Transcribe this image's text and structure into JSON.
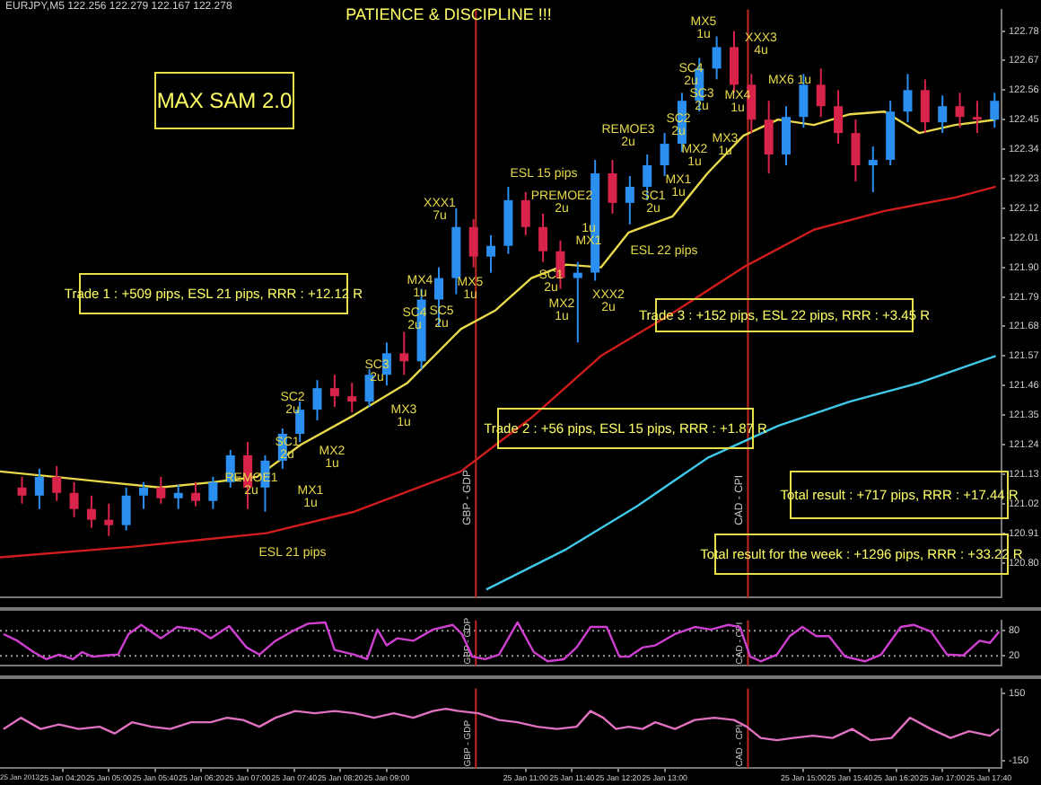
{
  "chart_data": [
    {
      "type": "candlestick",
      "title": "EURJPY,M5 122.256 122.279 122.167 122.278",
      "x": [
        "2013-01-25T03:45",
        "2013-01-25T04:00",
        "2013-01-25T04:15",
        "2013-01-25T04:30",
        "2013-01-25T04:45",
        "2013-01-25T05:00",
        "2013-01-25T05:15",
        "2013-01-25T05:30",
        "2013-01-25T05:45",
        "2013-01-25T06:00",
        "2013-01-25T06:15",
        "2013-01-25T06:30",
        "2013-01-25T06:45",
        "2013-01-25T07:00",
        "2013-01-25T07:15",
        "2013-01-25T07:30",
        "2013-01-25T07:45",
        "2013-01-25T08:00",
        "2013-01-25T08:15",
        "2013-01-25T08:30",
        "2013-01-25T08:45",
        "2013-01-25T09:00",
        "2013-01-25T09:15",
        "2013-01-25T09:30",
        "2013-01-25T09:45",
        "2013-01-25T10:00",
        "2013-01-25T10:15",
        "2013-01-25T10:30",
        "2013-01-25T10:45",
        "2013-01-25T11:00",
        "2013-01-25T11:15",
        "2013-01-25T11:30",
        "2013-01-25T11:45",
        "2013-01-25T12:00",
        "2013-01-25T12:15",
        "2013-01-25T12:30",
        "2013-01-25T12:45",
        "2013-01-25T13:00",
        "2013-01-25T13:15",
        "2013-01-25T13:30",
        "2013-01-25T13:45",
        "2013-01-25T14:00",
        "2013-01-25T14:15",
        "2013-01-25T14:30",
        "2013-01-25T14:45",
        "2013-01-25T15:00",
        "2013-01-25T15:15",
        "2013-01-25T15:30",
        "2013-01-25T15:45",
        "2013-01-25T16:00",
        "2013-01-25T16:15",
        "2013-01-25T16:30",
        "2013-01-25T16:45",
        "2013-01-25T17:00",
        "2013-01-25T17:15",
        "2013-01-25T17:30",
        "2013-01-25T17:45"
      ],
      "ohlc": [
        [
          121.08,
          121.12,
          121.02,
          121.05
        ],
        [
          121.05,
          121.15,
          121.0,
          121.12
        ],
        [
          121.12,
          121.16,
          121.03,
          121.06
        ],
        [
          121.06,
          121.1,
          120.97,
          121.0
        ],
        [
          121.0,
          121.05,
          120.93,
          120.96
        ],
        [
          120.96,
          121.02,
          120.9,
          120.94
        ],
        [
          120.94,
          121.08,
          120.92,
          121.05
        ],
        [
          121.05,
          121.1,
          121.0,
          121.08
        ],
        [
          121.08,
          121.12,
          121.02,
          121.04
        ],
        [
          121.04,
          121.09,
          121.0,
          121.06
        ],
        [
          121.06,
          121.1,
          121.01,
          121.03
        ],
        [
          121.03,
          121.12,
          121.0,
          121.1
        ],
        [
          121.1,
          121.22,
          121.08,
          121.2
        ],
        [
          121.2,
          121.25,
          121.0,
          121.08
        ],
        [
          121.08,
          121.2,
          120.99,
          121.18
        ],
        [
          121.18,
          121.3,
          121.15,
          121.28
        ],
        [
          121.28,
          121.4,
          121.25,
          121.37
        ],
        [
          121.37,
          121.48,
          121.33,
          121.45
        ],
        [
          121.45,
          121.5,
          121.38,
          121.42
        ],
        [
          121.42,
          121.47,
          121.36,
          121.4
        ],
        [
          121.4,
          121.52,
          121.38,
          121.5
        ],
        [
          121.5,
          121.62,
          121.46,
          121.58
        ],
        [
          121.58,
          121.66,
          121.5,
          121.55
        ],
        [
          121.55,
          121.82,
          121.52,
          121.78
        ],
        [
          121.78,
          121.9,
          121.68,
          121.86
        ],
        [
          121.86,
          122.12,
          121.8,
          122.05
        ],
        [
          122.05,
          122.08,
          121.9,
          121.94
        ],
        [
          121.94,
          122.02,
          121.88,
          121.98
        ],
        [
          121.98,
          122.2,
          121.95,
          122.15
        ],
        [
          122.15,
          122.18,
          122.02,
          122.05
        ],
        [
          122.05,
          122.1,
          121.92,
          121.96
        ],
        [
          121.96,
          122.0,
          121.82,
          121.86
        ],
        [
          121.86,
          121.92,
          121.62,
          121.88
        ],
        [
          121.88,
          122.3,
          121.85,
          122.25
        ],
        [
          122.25,
          122.3,
          122.1,
          122.14
        ],
        [
          122.14,
          122.24,
          122.06,
          122.2
        ],
        [
          122.2,
          122.32,
          122.15,
          122.28
        ],
        [
          122.28,
          122.4,
          122.24,
          122.36
        ],
        [
          122.36,
          122.55,
          122.33,
          122.52
        ],
        [
          122.52,
          122.68,
          122.48,
          122.64
        ],
        [
          122.64,
          122.76,
          122.6,
          122.72
        ],
        [
          122.72,
          122.78,
          122.55,
          122.58
        ],
        [
          122.58,
          122.62,
          122.4,
          122.45
        ],
        [
          122.45,
          122.52,
          122.25,
          122.32
        ],
        [
          122.32,
          122.5,
          122.28,
          122.46
        ],
        [
          122.46,
          122.62,
          122.42,
          122.58
        ],
        [
          122.58,
          122.64,
          122.46,
          122.5
        ],
        [
          122.5,
          122.56,
          122.36,
          122.4
        ],
        [
          122.4,
          122.45,
          122.22,
          122.28
        ],
        [
          122.28,
          122.35,
          122.18,
          122.3
        ],
        [
          122.3,
          122.52,
          122.28,
          122.48
        ],
        [
          122.48,
          122.62,
          122.44,
          122.56
        ],
        [
          122.56,
          122.6,
          122.4,
          122.44
        ],
        [
          122.44,
          122.54,
          122.4,
          122.5
        ],
        [
          122.5,
          122.55,
          122.42,
          122.46
        ],
        [
          122.46,
          122.52,
          122.4,
          122.45
        ],
        [
          122.45,
          122.55,
          122.42,
          122.52
        ]
      ],
      "colors": [
        "#d8234a",
        "#2a8ff0",
        "#d8234a",
        "#d8234a",
        "#d8234a",
        "#d8234a",
        "#2a8ff0",
        "#2a8ff0",
        "#d8234a",
        "#2a8ff0",
        "#d8234a",
        "#2a8ff0",
        "#2a8ff0",
        "#d8234a",
        "#2a8ff0",
        "#2a8ff0",
        "#2a8ff0",
        "#2a8ff0",
        "#d8234a",
        "#d8234a",
        "#2a8ff0",
        "#2a8ff0",
        "#d8234a",
        "#2a8ff0",
        "#2a8ff0",
        "#2a8ff0",
        "#d8234a",
        "#2a8ff0",
        "#2a8ff0",
        "#d8234a",
        "#d8234a",
        "#d8234a",
        "#2a8ff0",
        "#2a8ff0",
        "#d8234a",
        "#2a8ff0",
        "#2a8ff0",
        "#2a8ff0",
        "#2a8ff0",
        "#2a8ff0",
        "#2a8ff0",
        "#d8234a",
        "#d8234a",
        "#d8234a",
        "#2a8ff0",
        "#2a8ff0",
        "#d8234a",
        "#d8234a",
        "#d8234a",
        "#2a8ff0",
        "#2a8ff0",
        "#2a8ff0",
        "#d8234a",
        "#2a8ff0",
        "#d8234a",
        "#d8234a",
        "#2a8ff0"
      ],
      "series": [
        {
          "type": "line",
          "color": "#e8d84a",
          "x": [
            "2013-01-25T03:26",
            "2013-01-25T04:13",
            "2013-01-25T04:58",
            "2013-01-25T05:44",
            "2013-01-25T06:30",
            "2013-01-25T07:08",
            "2013-01-25T07:46",
            "2013-01-25T08:32",
            "2013-01-25T09:18",
            "2013-01-25T10:04",
            "2013-01-25T10:34",
            "2013-01-25T11:05",
            "2013-01-25T11:35",
            "2013-01-25T12:05",
            "2013-01-25T12:29",
            "2013-01-25T13:07",
            "2013-01-25T13:37",
            "2013-01-25T14:08",
            "2013-01-25T14:38",
            "2013-01-25T15:09",
            "2013-01-25T15:40",
            "2013-01-25T16:10",
            "2013-01-25T16:40",
            "2013-01-25T17:11",
            "2013-01-25T17:46"
          ],
          "values": [
            121.14,
            121.12,
            121.1,
            121.08,
            121.1,
            121.12,
            121.24,
            121.35,
            121.47,
            121.67,
            121.74,
            121.86,
            121.91,
            121.9,
            122.03,
            122.09,
            122.25,
            122.39,
            122.45,
            122.43,
            122.47,
            122.48,
            122.4,
            122.43,
            122.45
          ]
        },
        {
          "type": "line",
          "color": "#d01c1c",
          "x": [
            "2013-01-25T03:26",
            "2013-01-25T05:21",
            "2013-01-25T07:16",
            "2013-01-25T08:32",
            "2013-01-25T10:04",
            "2013-01-25T11:05",
            "2013-01-25T12:05",
            "2013-01-25T13:07",
            "2013-01-25T14:08",
            "2013-01-25T15:09",
            "2013-01-25T16:10",
            "2013-01-25T17:11",
            "2013-01-25T17:46"
          ],
          "values": [
            120.82,
            120.86,
            120.91,
            120.99,
            121.14,
            121.34,
            121.57,
            121.73,
            121.9,
            122.04,
            122.11,
            122.16,
            122.2
          ]
        },
        {
          "type": "line",
          "color": "#3fc8e8",
          "x": [
            "2013-01-25T10:26",
            "2013-01-25T11:35",
            "2013-01-25T12:36",
            "2013-01-25T13:37",
            "2013-01-25T14:38",
            "2013-01-25T15:40",
            "2013-01-25T16:40",
            "2013-01-25T17:46"
          ],
          "values": [
            120.7,
            120.85,
            121.01,
            121.19,
            121.31,
            121.4,
            121.47,
            121.57
          ]
        }
      ],
      "xlim": [
        "2013-01-25T03:26",
        "2013-01-25T17:51"
      ],
      "ylim": [
        120.67,
        122.86
      ],
      "yticks": [
        {
          "value": 120.8,
          "label": "120.80"
        },
        120.91,
        121.02,
        121.13,
        121.24,
        121.35,
        121.46,
        121.57,
        121.68,
        121.79,
        {
          "value": 121.9,
          "label": "121.90"
        },
        122.01,
        122.12,
        122.23,
        122.34,
        122.45,
        122.56,
        122.67,
        122.78
      ],
      "tick_labels": "y",
      "ref_lines": [
        {
          "axis": "x",
          "value": "2013-01-25T10:17",
          "label": "GBP - GDP",
          "color": "#c0281e"
        },
        {
          "axis": "x",
          "value": "2013-01-25T14:12",
          "label": "CAD - CPI",
          "color": "#c0281e"
        }
      ],
      "annotations": [
        "PATIENCE & DISCIPLINE !!!",
        "MAX SAM 2.0",
        "Trade 1 : +509 pips, ESL 21 pips, RRR : +12.12 R",
        "Trade 2 : +56 pips, ESL 15 pips, RRR : +1.87 R",
        "Trade 3 : +152 pips, ESL 22 pips, RRR : +3.45 R",
        "Total result : +717 pips, RRR : +17.44 R",
        "Total result for the week : +1296 pips, RRR : +33.22 R",
        "REMOE1\n2u",
        "SC1\n2u",
        "MX1\n1u",
        "MX2\n1u",
        "SC2\n2u",
        "SC3\n2u",
        "MX3\n1u",
        "SC4\n2u",
        "MX4\n1u",
        "MX5\n1u",
        "SC5\n2u",
        "XXX1\n7u",
        "ESL 21 pips",
        "ESL 15 pips",
        "PREMOE2\n2u",
        "1u\nMX1",
        "SC1\n2u",
        "MX2\n1u",
        "XXX2\n2u",
        "REMOE3\n2u",
        "MX1\n1u",
        "SC1\n2u",
        "ESL 22 pips",
        "MX2\n1u",
        "SC2\n2u",
        "MX3\n1u",
        "SC3\n2u",
        "MX4\n1u",
        "SC4\n2u",
        "MX6 1u",
        "MX5\n1u",
        "XXX3\n4u"
      ]
    },
    {
      "type": "line",
      "color": "#d040d0",
      "x": [
        "2013-01-25T03:29",
        "2013-01-25T03:41",
        "2013-01-25T03:55",
        "2013-01-25T04:06",
        "2013-01-25T04:17",
        "2013-01-25T04:29",
        "2013-01-25T04:37",
        "2013-01-25T04:46",
        "2013-01-25T04:57",
        "2013-01-25T05:08",
        "2013-01-25T05:17",
        "2013-01-25T05:28",
        "2013-01-25T05:45",
        "2013-01-25T05:59",
        "2013-01-25T06:16",
        "2013-01-25T06:28",
        "2013-01-25T06:44",
        "2013-01-25T06:59",
        "2013-01-25T07:10",
        "2013-01-25T07:24",
        "2013-01-25T07:38",
        "2013-01-25T07:52",
        "2013-01-25T08:07",
        "2013-01-25T08:15",
        "2013-01-25T08:32",
        "2013-01-25T08:43",
        "2013-01-25T08:52",
        "2013-01-25T09:00",
        "2013-01-25T09:09",
        "2013-01-25T09:23",
        "2013-01-25T09:40",
        "2013-01-25T09:57",
        "2013-01-25T10:05",
        "2013-01-25T10:14",
        "2013-01-25T10:25",
        "2013-01-25T10:37",
        "2013-01-25T10:53",
        "2013-01-25T11:07",
        "2013-01-25T11:19",
        "2013-01-25T11:33",
        "2013-01-25T11:44",
        "2013-01-25T11:56",
        "2013-01-25T12:10",
        "2013-01-25T12:21",
        "2013-01-25T12:29",
        "2013-01-25T12:41",
        "2013-01-25T12:52",
        "2013-01-25T13:09",
        "2013-01-25T13:26",
        "2013-01-25T13:40",
        "2013-01-25T13:55",
        "2013-01-25T14:05",
        "2013-01-25T14:14",
        "2013-01-25T14:23",
        "2013-01-25T14:37",
        "2013-01-25T14:48",
        "2013-01-25T14:59",
        "2013-01-25T15:11",
        "2013-01-25T15:22",
        "2013-01-25T15:36",
        "2013-01-25T15:53",
        "2013-01-25T16:07",
        "2013-01-25T16:24",
        "2013-01-25T16:35",
        "2013-01-25T16:50",
        "2013-01-25T17:04",
        "2013-01-25T17:18",
        "2013-01-25T17:32",
        "2013-01-25T17:41",
        "2013-01-25T17:49"
      ],
      "values": [
        72,
        56,
        29,
        12,
        23,
        12,
        29,
        18,
        21,
        23,
        72,
        94,
        62,
        89,
        83,
        62,
        91,
        40,
        23,
        56,
        78,
        97,
        100,
        34,
        23,
        12,
        83,
        45,
        62,
        56,
        83,
        94,
        72,
        18,
        12,
        23,
        100,
        29,
        7,
        12,
        40,
        89,
        89,
        18,
        18,
        40,
        45,
        72,
        89,
        83,
        94,
        89,
        18,
        7,
        23,
        67,
        89,
        67,
        67,
        18,
        7,
        23,
        89,
        94,
        78,
        23,
        21,
        56,
        51,
        78
      ],
      "xlim": [
        "2013-01-25T03:26",
        "2013-01-25T17:51"
      ],
      "ylim": [
        -4,
        105
      ],
      "yticks": [
        20,
        80
      ],
      "tick_labels": "y",
      "ref_lines": [
        {
          "axis": "y",
          "value": 20,
          "color": "#9a9a9a",
          "line_style": "dotted"
        },
        {
          "axis": "y",
          "value": 80,
          "color": "#9a9a9a",
          "line_style": "dotted"
        },
        {
          "axis": "x",
          "value": "2013-01-25T10:17",
          "label": "GBP - GDP",
          "color": "#c0281e"
        },
        {
          "axis": "x",
          "value": "2013-01-25T14:12",
          "label": "CAD - CPI",
          "color": "#c0281e"
        }
      ]
    },
    {
      "type": "line",
      "color": "#e070c0",
      "x": [
        "2013-01-25T03:29",
        "2013-01-25T03:44",
        "2013-01-25T04:01",
        "2013-01-25T04:17",
        "2013-01-25T04:34",
        "2013-01-25T04:52",
        "2013-01-25T05:05",
        "2013-01-25T05:20",
        "2013-01-25T05:37",
        "2013-01-25T05:53",
        "2013-01-25T06:11",
        "2013-01-25T06:28",
        "2013-01-25T06:42",
        "2013-01-25T06:56",
        "2013-01-25T07:10",
        "2013-01-25T07:24",
        "2013-01-25T07:41",
        "2013-01-25T07:58",
        "2013-01-25T08:15",
        "2013-01-25T08:32",
        "2013-01-25T08:49",
        "2013-01-25T09:06",
        "2013-01-25T09:23",
        "2013-01-25T09:40",
        "2013-01-25T09:51",
        "2013-01-25T10:02",
        "2013-01-25T10:19",
        "2013-01-25T10:37",
        "2013-01-25T10:53",
        "2013-01-25T11:10",
        "2013-01-25T11:27",
        "2013-01-25T11:44",
        "2013-01-25T11:56",
        "2013-01-25T12:07",
        "2013-01-25T12:18",
        "2013-01-25T12:29",
        "2013-01-25T12:41",
        "2013-01-25T12:52",
        "2013-01-25T13:09",
        "2013-01-25T13:26",
        "2013-01-25T13:43",
        "2013-01-25T14:00",
        "2013-01-25T14:11",
        "2013-01-25T14:23",
        "2013-01-25T14:37",
        "2013-01-25T14:51",
        "2013-01-25T15:08",
        "2013-01-25T15:25",
        "2013-01-25T15:42",
        "2013-01-25T15:58",
        "2013-01-25T16:16",
        "2013-01-25T16:32",
        "2013-01-25T16:50",
        "2013-01-25T17:07",
        "2013-01-25T17:23",
        "2013-01-25T17:41",
        "2013-01-25T17:49"
      ],
      "values": [
        -10,
        40,
        -10,
        10,
        -10,
        0,
        -30,
        20,
        0,
        -10,
        20,
        20,
        40,
        30,
        0,
        40,
        70,
        60,
        70,
        60,
        40,
        60,
        40,
        70,
        80,
        70,
        60,
        30,
        20,
        0,
        -10,
        0,
        70,
        40,
        -10,
        0,
        -10,
        20,
        -10,
        30,
        40,
        30,
        0,
        -50,
        -60,
        -50,
        -40,
        -50,
        -10,
        -60,
        -50,
        40,
        -10,
        -50,
        -20,
        -40,
        -10
      ],
      "xlim": [
        "2013-01-25T03:26",
        "2013-01-25T17:51"
      ],
      "ylim": [
        -185,
        170
      ],
      "yticks": [
        -150,
        150
      ],
      "annotations": [
        "25 Jan 2013"
      ],
      "xticks": [
        {
          "value": "2013-01-25T04:20",
          "label": "25 Jan 04:20"
        },
        {
          "value": "2013-01-25T05:00",
          "label": "25 Jan 05:00"
        },
        {
          "value": "2013-01-25T05:40",
          "label": "25 Jan 05:40"
        },
        {
          "value": "2013-01-25T06:20",
          "label": "25 Jan 06:20"
        },
        {
          "value": "2013-01-25T07:00",
          "label": "25 Jan 07:00"
        },
        {
          "value": "2013-01-25T07:40",
          "label": "25 Jan 07:40"
        },
        {
          "value": "2013-01-25T08:20",
          "label": "25 Jan 08:20"
        },
        {
          "value": "2013-01-25T09:00",
          "label": "25 Jan 09:00"
        },
        {
          "value": "2013-01-25T11:00",
          "label": "25 Jan 11:00"
        },
        {
          "value": "2013-01-25T11:40",
          "label": "25 Jan 11:40"
        },
        {
          "value": "2013-01-25T12:20",
          "label": "25 Jan 12:20"
        },
        {
          "value": "2013-01-25T13:00",
          "label": "25 Jan 13:00"
        },
        {
          "value": "2013-01-25T15:00",
          "label": "25 Jan 15:00"
        },
        {
          "value": "2013-01-25T15:40",
          "label": "25 Jan 15:40"
        },
        {
          "value": "2013-01-25T16:20",
          "label": "25 Jan 16:20"
        },
        {
          "value": "2013-01-25T17:00",
          "label": "25 Jan 17:00"
        },
        {
          "value": "2013-01-25T17:40",
          "label": "25 Jan 17:40"
        }
      ],
      "ref_lines": [
        {
          "axis": "x",
          "value": "2013-01-25T10:17",
          "label": "GBP - GDP",
          "color": "#c0281e"
        },
        {
          "axis": "x",
          "value": "2013-01-25T14:12",
          "label": "CAD - CPI",
          "color": "#c0281e"
        }
      ]
    }
  ]
}
